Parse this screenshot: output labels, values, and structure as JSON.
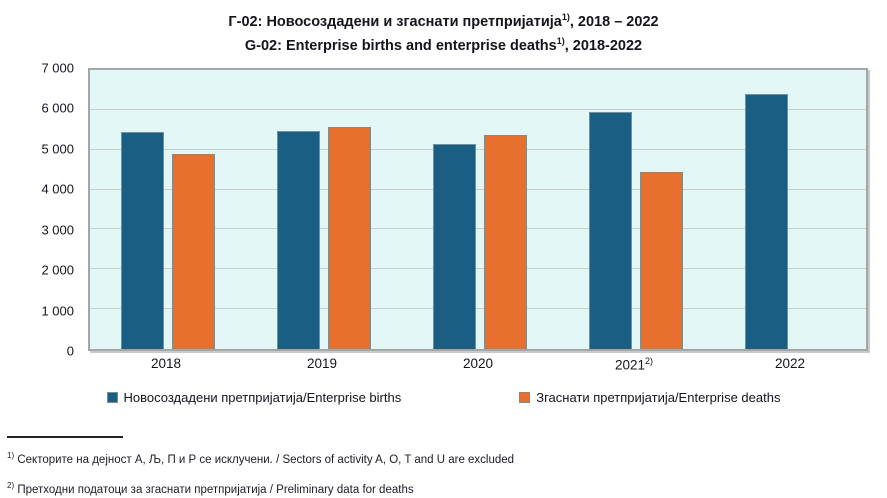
{
  "title": {
    "line1": {
      "text": "Г-02: Новосоздадени и згаснати претпријатија",
      "sup": "1)",
      "tail": ", 2018 – 2022"
    },
    "line2": {
      "text": "G-02: Enterprise births and enterprise deaths",
      "sup": "1)",
      "tail": ", 2018-2022"
    }
  },
  "chart_data": {
    "type": "bar",
    "title": "Г-02: Новосоздадени и згаснати претпријатија, 2018 – 2022 / G-02: Enterprise births and enterprise deaths, 2018-2022",
    "categories": [
      "2018",
      "2019",
      "2020",
      "2021",
      "2022"
    ],
    "category_sups": [
      "",
      "",
      "",
      "2)",
      ""
    ],
    "series": [
      {
        "name": "Новосоздадени претпријатија/Enterprise births",
        "color": "#1A5F83",
        "values": [
          5450,
          5480,
          5150,
          5950,
          6400
        ]
      },
      {
        "name": "Згаснати претпријатија/Enterprise deaths",
        "color": "#E8702E",
        "values": [
          4890,
          5560,
          5380,
          4430,
          null
        ]
      }
    ],
    "xlabel": "",
    "ylabel": "",
    "ylim": [
      0,
      7000
    ],
    "ytick_step": 1000,
    "ytick_labels": [
      "0",
      "1 000",
      "2 000",
      "3 000",
      "4 000",
      "5 000",
      "6 000",
      "7 000"
    ],
    "grid": true,
    "legend_position": "bottom",
    "colors": {
      "plot_bg": "#E3F8F6",
      "grid_line": "#C9CECD",
      "plot_border": "#A2A8A8",
      "bar_border": "#828A8A",
      "text": "#14141F"
    }
  },
  "footnotes": [
    {
      "sup": "1)",
      "text": "Секторите на дејност А, Љ, П и Р се исклучени. / Sectors of activity A, O, T and U are excluded"
    },
    {
      "sup": "2)",
      "text": "Претходни податоци за згаснати претпријатија / Preliminary data for deaths"
    }
  ]
}
